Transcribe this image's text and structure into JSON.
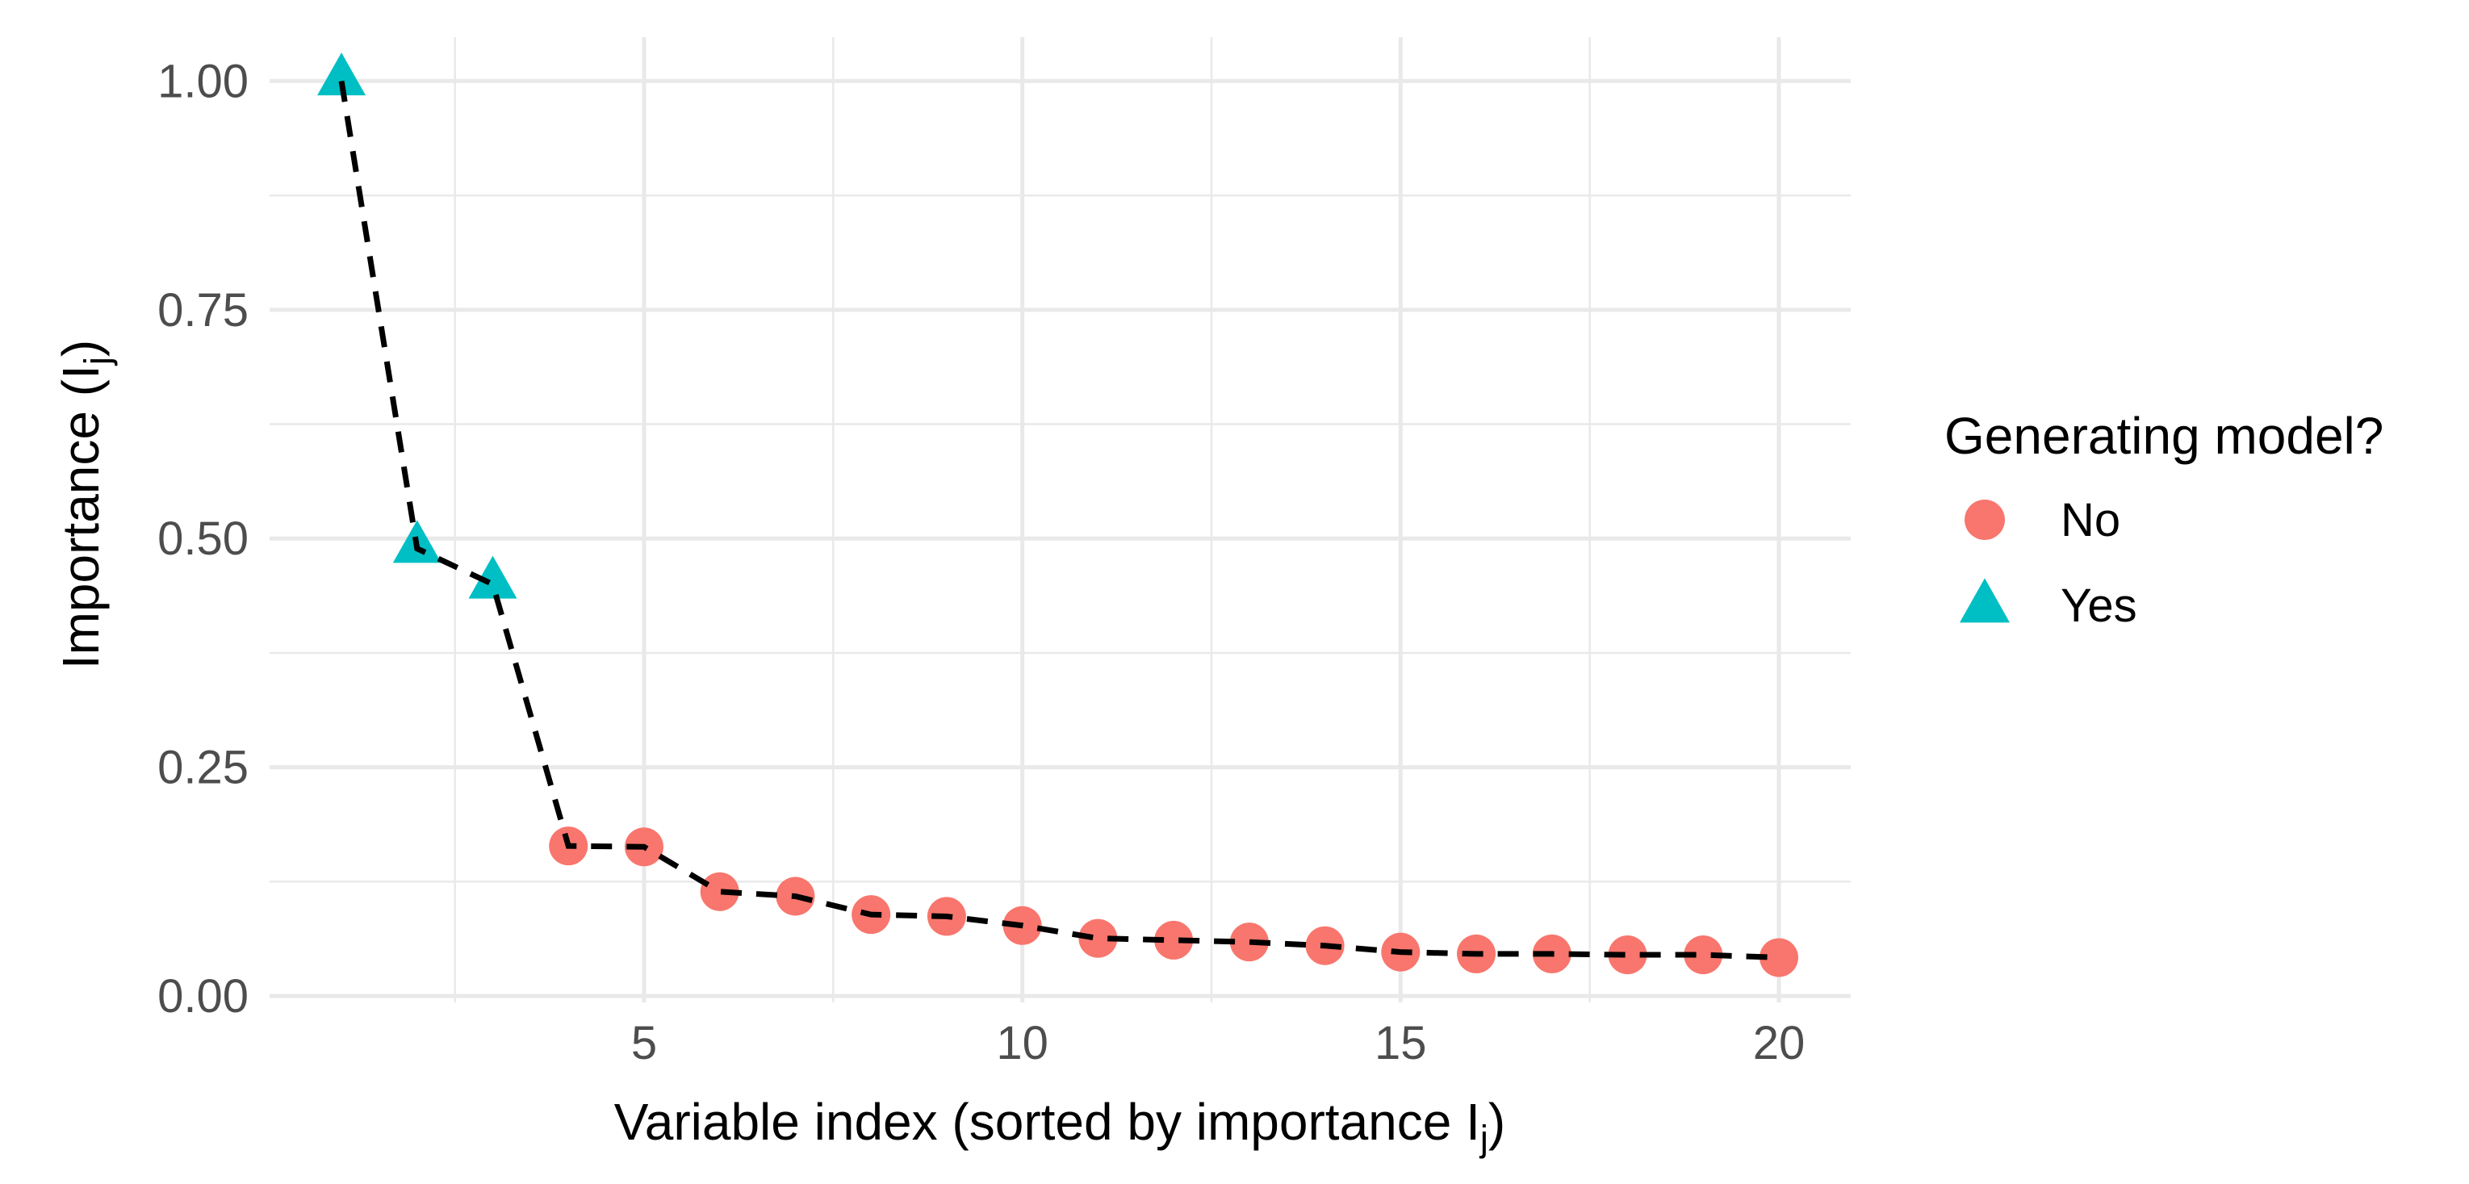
{
  "chart_data": {
    "type": "line",
    "title": "",
    "x_axis": {
      "label_main": "Variable index (sorted by importance I",
      "label_sub": "j",
      "label_end": ")",
      "range": [
        0.05,
        20.95
      ],
      "major_ticks": [
        5,
        10,
        15,
        20
      ],
      "tick_labels": [
        "5",
        "10",
        "15",
        "20"
      ],
      "minor_ticks": [
        2.5,
        7.5,
        12.5,
        17.5
      ]
    },
    "y_axis": {
      "label_main": "Importance (I",
      "label_sub": "j",
      "label_end": ")",
      "range": [
        -0.007,
        1.048
      ],
      "major_ticks": [
        0,
        0.25,
        0.5,
        0.75,
        1
      ],
      "tick_labels": [
        "0.00",
        "0.25",
        "0.50",
        "0.75",
        "1.00"
      ],
      "minor_ticks": [
        0.125,
        0.375,
        0.625,
        0.875
      ]
    },
    "points": [
      {
        "x": 1,
        "y": 1.0,
        "generating": "Yes"
      },
      {
        "x": 2,
        "y": 0.489,
        "generating": "Yes"
      },
      {
        "x": 3,
        "y": 0.45,
        "generating": "Yes"
      },
      {
        "x": 4,
        "y": 0.164,
        "generating": "No"
      },
      {
        "x": 5,
        "y": 0.163,
        "generating": "No"
      },
      {
        "x": 6,
        "y": 0.114,
        "generating": "No"
      },
      {
        "x": 7,
        "y": 0.109,
        "generating": "No"
      },
      {
        "x": 8,
        "y": 0.089,
        "generating": "No"
      },
      {
        "x": 9,
        "y": 0.087,
        "generating": "No"
      },
      {
        "x": 10,
        "y": 0.077,
        "generating": "No"
      },
      {
        "x": 11,
        "y": 0.063,
        "generating": "No"
      },
      {
        "x": 12,
        "y": 0.061,
        "generating": "No"
      },
      {
        "x": 13,
        "y": 0.059,
        "generating": "No"
      },
      {
        "x": 14,
        "y": 0.055,
        "generating": "No"
      },
      {
        "x": 15,
        "y": 0.048,
        "generating": "No"
      },
      {
        "x": 16,
        "y": 0.046,
        "generating": "No"
      },
      {
        "x": 17,
        "y": 0.046,
        "generating": "No"
      },
      {
        "x": 18,
        "y": 0.045,
        "generating": "No"
      },
      {
        "x": 19,
        "y": 0.045,
        "generating": "No"
      },
      {
        "x": 20,
        "y": 0.042,
        "generating": "No"
      }
    ],
    "line_style": {
      "color": "#000000",
      "style": "dashed",
      "width": 7,
      "dash": "26 18"
    },
    "grid": {
      "show": true,
      "color": "#E9E9E9",
      "background": "#FFFFFF"
    },
    "colors": {
      "No": "#F8766D",
      "Yes": "#00BFC4"
    },
    "legend": {
      "title": "Generating model?",
      "position": "right",
      "entries": [
        {
          "label": "No",
          "marker": "circle",
          "color": "#F8766D"
        },
        {
          "label": "Yes",
          "marker": "triangle",
          "color": "#00BFC4"
        }
      ]
    }
  }
}
